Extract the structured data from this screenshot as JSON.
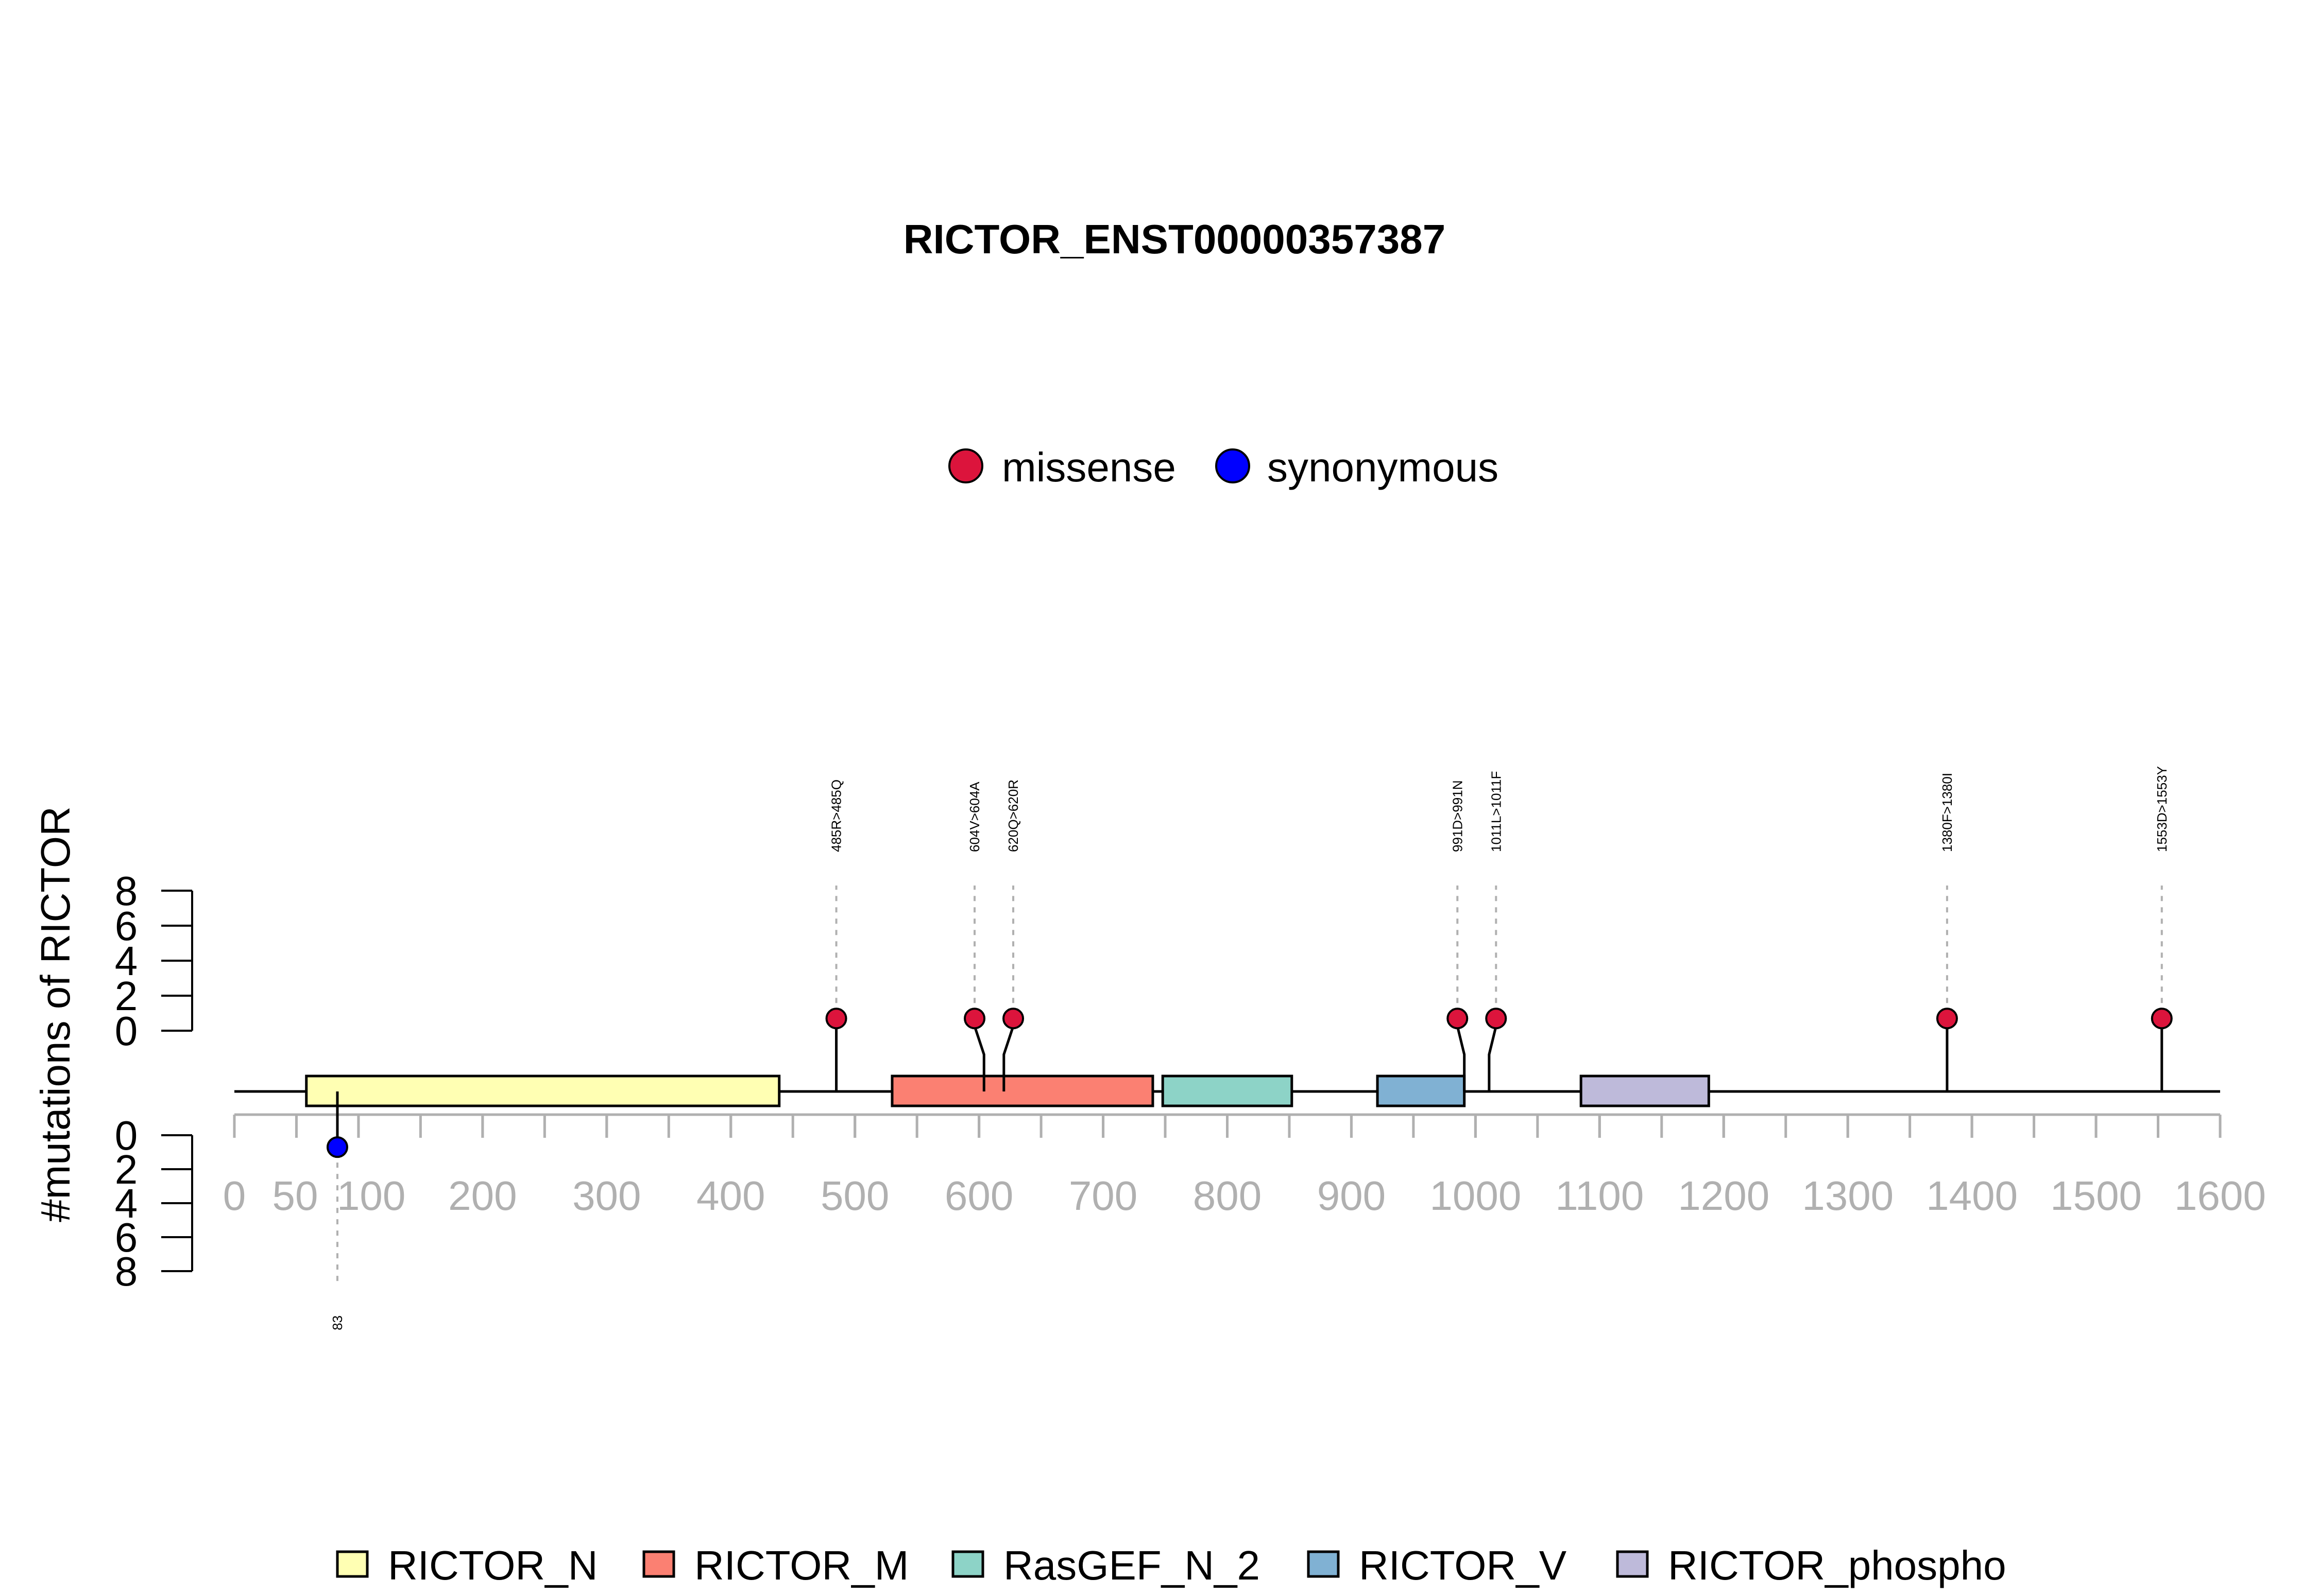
{
  "chart_data": {
    "type": "lollipop",
    "title": "RICTOR_ENST00000357387",
    "ylabel": "#mutations of RICTOR",
    "xlim": [
      0,
      1600
    ],
    "x_ticks": [
      0,
      50,
      100,
      200,
      300,
      400,
      500,
      600,
      700,
      800,
      900,
      1000,
      1100,
      1200,
      1300,
      1400,
      1500,
      1600
    ],
    "y_ticks_top": [
      0,
      2,
      4,
      6,
      8
    ],
    "y_ticks_bottom": [
      0,
      2,
      4,
      6,
      8
    ],
    "ylim": [
      0,
      8
    ],
    "legend_types": [
      {
        "name": "missense",
        "color": "#DC143C"
      },
      {
        "name": "synonymous",
        "color": "#0000FF"
      }
    ],
    "domains": [
      {
        "name": "RICTOR_N",
        "start": 58,
        "end": 439,
        "color": "#FFFFB3"
      },
      {
        "name": "RICTOR_M",
        "start": 530,
        "end": 740,
        "color": "#FB8072"
      },
      {
        "name": "RasGEF_N_2",
        "start": 748,
        "end": 852,
        "color": "#8DD3C7"
      },
      {
        "name": "RICTOR_V",
        "start": 921,
        "end": 991,
        "color": "#80B1D3"
      },
      {
        "name": "RICTOR_phospho",
        "start": 1085,
        "end": 1188,
        "color": "#BEBADA"
      }
    ],
    "mutations": [
      {
        "position": 485,
        "label": "485R>485Q",
        "type": "missense",
        "count": 1,
        "side": "top"
      },
      {
        "position": 604,
        "label": "604V>604A",
        "type": "missense",
        "count": 1,
        "side": "top"
      },
      {
        "position": 620,
        "label": "620Q>620R",
        "type": "missense",
        "count": 1,
        "side": "top"
      },
      {
        "position": 991,
        "label": "991D>991N",
        "type": "missense",
        "count": 1,
        "side": "top"
      },
      {
        "position": 1011,
        "label": "1011L>1011F",
        "type": "missense",
        "count": 1,
        "side": "top"
      },
      {
        "position": 1380,
        "label": "1380F>1380I",
        "type": "missense",
        "count": 1,
        "side": "top"
      },
      {
        "position": 1553,
        "label": "1553D>1553Y",
        "type": "missense",
        "count": 1,
        "side": "top"
      },
      {
        "position": 83,
        "label": "83",
        "type": "synonymous",
        "count": 1,
        "side": "bottom"
      }
    ]
  }
}
